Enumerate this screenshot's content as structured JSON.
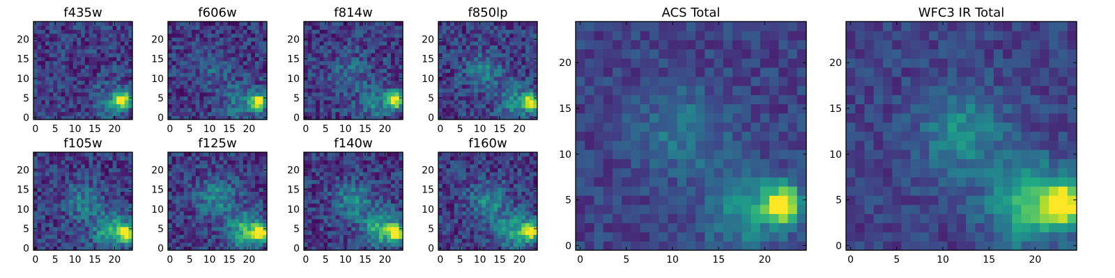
{
  "colors": {
    "colormap": "viridis",
    "background": "#ffffff",
    "axis": "#000000"
  },
  "chart_data": [
    {
      "type": "heatmap",
      "title": "f435w",
      "grid": false,
      "xlim": [
        0,
        24
      ],
      "ylim": [
        0,
        24
      ],
      "xticks": [
        0,
        5,
        10,
        15,
        20
      ],
      "yticks": [
        0,
        5,
        10,
        15,
        20
      ],
      "hotspots": [
        {
          "x": 22,
          "y": 4.5,
          "level": 1.0
        },
        {
          "x": 19,
          "y": 4,
          "level": 0.25
        }
      ]
    },
    {
      "type": "heatmap",
      "title": "f606w",
      "grid": false,
      "xlim": [
        0,
        24
      ],
      "ylim": [
        0,
        24
      ],
      "xticks": [
        0,
        5,
        10,
        15,
        20
      ],
      "yticks": [
        0,
        5,
        10,
        15,
        20
      ],
      "hotspots": [
        {
          "x": 22.5,
          "y": 4,
          "level": 1.0
        },
        {
          "x": 18,
          "y": 4,
          "level": 0.3
        },
        {
          "x": 11,
          "y": 12,
          "level": 0.15
        }
      ]
    },
    {
      "type": "heatmap",
      "title": "f814w",
      "grid": false,
      "xlim": [
        0,
        24
      ],
      "ylim": [
        0,
        24
      ],
      "xticks": [
        0,
        5,
        10,
        15,
        20
      ],
      "yticks": [
        0,
        5,
        10,
        15,
        20
      ],
      "hotspots": [
        {
          "x": 22.5,
          "y": 4.5,
          "level": 1.0
        },
        {
          "x": 18,
          "y": 4,
          "level": 0.3
        },
        {
          "x": 11,
          "y": 12,
          "level": 0.2
        }
      ]
    },
    {
      "type": "heatmap",
      "title": "f850lp",
      "grid": false,
      "xlim": [
        0,
        24
      ],
      "ylim": [
        0,
        24
      ],
      "xticks": [
        0,
        5,
        10,
        15,
        20
      ],
      "yticks": [
        0,
        5,
        10,
        15,
        20
      ],
      "hotspots": [
        {
          "x": 23,
          "y": 4,
          "level": 1.0
        },
        {
          "x": 19,
          "y": 4,
          "level": 0.35
        },
        {
          "x": 11,
          "y": 12,
          "level": 0.3
        }
      ]
    },
    {
      "type": "heatmap",
      "title": "f105w",
      "grid": false,
      "xlim": [
        0,
        24
      ],
      "ylim": [
        0,
        24
      ],
      "xticks": [
        0,
        5,
        10,
        15,
        20
      ],
      "yticks": [
        0,
        5,
        10,
        15,
        20
      ],
      "hotspots": [
        {
          "x": 23,
          "y": 4,
          "level": 1.0
        },
        {
          "x": 19,
          "y": 4.5,
          "level": 0.5
        },
        {
          "x": 12,
          "y": 12,
          "level": 0.3
        }
      ]
    },
    {
      "type": "heatmap",
      "title": "f125w",
      "grid": false,
      "xlim": [
        0,
        24
      ],
      "ylim": [
        0,
        24
      ],
      "xticks": [
        0,
        5,
        10,
        15,
        20
      ],
      "yticks": [
        0,
        5,
        10,
        15,
        20
      ],
      "hotspots": [
        {
          "x": 23,
          "y": 4,
          "level": 1.0
        },
        {
          "x": 19,
          "y": 4.5,
          "level": 0.55
        },
        {
          "x": 12,
          "y": 13,
          "level": 0.35
        }
      ]
    },
    {
      "type": "heatmap",
      "title": "f140w",
      "grid": false,
      "xlim": [
        0,
        24
      ],
      "ylim": [
        0,
        24
      ],
      "xticks": [
        0,
        5,
        10,
        15,
        20
      ],
      "yticks": [
        0,
        5,
        10,
        15,
        20
      ],
      "hotspots": [
        {
          "x": 23,
          "y": 4,
          "level": 1.0
        },
        {
          "x": 19,
          "y": 5,
          "level": 0.55
        },
        {
          "x": 12,
          "y": 12,
          "level": 0.35
        }
      ]
    },
    {
      "type": "heatmap",
      "title": "f160w",
      "grid": false,
      "xlim": [
        0,
        24
      ],
      "ylim": [
        0,
        24
      ],
      "xticks": [
        0,
        5,
        10,
        15,
        20
      ],
      "yticks": [
        0,
        5,
        10,
        15,
        20
      ],
      "hotspots": [
        {
          "x": 23,
          "y": 4.5,
          "level": 1.0
        },
        {
          "x": 19,
          "y": 4.5,
          "level": 0.5
        },
        {
          "x": 12,
          "y": 12,
          "level": 0.35
        }
      ]
    },
    {
      "type": "heatmap",
      "title": "ACS Total",
      "grid": false,
      "xlim": [
        0,
        24
      ],
      "ylim": [
        0,
        24
      ],
      "xticks": [
        0,
        5,
        10,
        15,
        20
      ],
      "yticks": [
        0,
        5,
        10,
        15,
        20
      ],
      "hotspots": [
        {
          "x": 22,
          "y": 4.5,
          "level": 1.0
        },
        {
          "x": 18,
          "y": 4,
          "level": 0.35
        },
        {
          "x": 11,
          "y": 12.5,
          "level": 0.25
        }
      ]
    },
    {
      "type": "heatmap",
      "title": "WFC3 IR Total",
      "grid": false,
      "xlim": [
        0,
        24
      ],
      "ylim": [
        0,
        24
      ],
      "xticks": [
        0,
        5,
        10,
        15,
        20
      ],
      "yticks": [
        0,
        5,
        10,
        15,
        20
      ],
      "hotspots": [
        {
          "x": 23,
          "y": 4.5,
          "level": 1.0
        },
        {
          "x": 19.5,
          "y": 4.5,
          "level": 0.55
        },
        {
          "x": 12,
          "y": 12.5,
          "level": 0.35
        }
      ]
    }
  ]
}
